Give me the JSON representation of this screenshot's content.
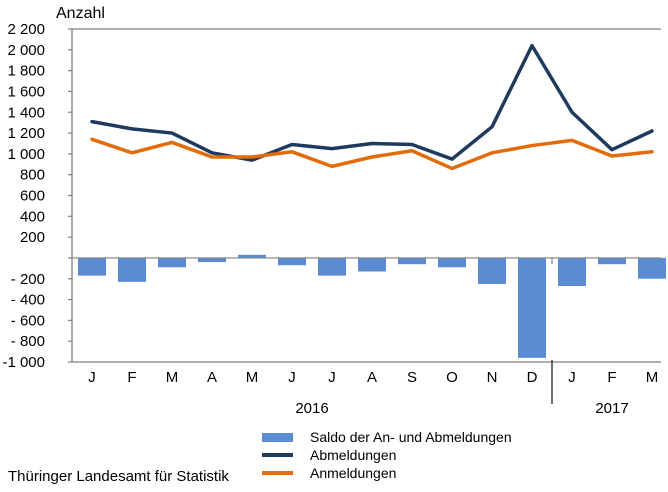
{
  "title": "Anzahl",
  "footer": "Thüringer Landesamt für Statistik",
  "colors": {
    "bar_blue": "#5B8BD0",
    "line_navy": "#1F3A5F",
    "line_orange": "#E36C0A",
    "axis_gray": "#808080",
    "separator_dark": "#333333",
    "text_black": "#000000"
  },
  "legend": {
    "items": [
      {
        "label": "Saldo der An- und Abmeldungen",
        "type": "bar",
        "color": "#5B8BD0"
      },
      {
        "label": "Abmeldungen",
        "type": "line",
        "color": "#1F3A5F"
      },
      {
        "label": "Anmeldungen",
        "type": "line",
        "color": "#E36C0A"
      }
    ]
  },
  "chart_data": {
    "type": "bar",
    "subtype": "combo-bar-line",
    "title": "Anzahl",
    "xlabel": "",
    "ylabel": "Anzahl",
    "ylim": [
      -1000,
      2200
    ],
    "ytick_step": 200,
    "grid": "off",
    "legend_position": "bottom",
    "categories": [
      "J",
      "F",
      "M",
      "A",
      "M",
      "J",
      "J",
      "A",
      "S",
      "O",
      "N",
      "D",
      "J",
      "F",
      "M"
    ],
    "year_groups": [
      {
        "label": "2016",
        "months": 12
      },
      {
        "label": "2017",
        "months": 3
      }
    ],
    "yticks": [
      {
        "v": 2200,
        "l": "2 200"
      },
      {
        "v": 2000,
        "l": "2 000"
      },
      {
        "v": 1800,
        "l": "1 800"
      },
      {
        "v": 1600,
        "l": "1 600"
      },
      {
        "v": 1400,
        "l": "1 400"
      },
      {
        "v": 1200,
        "l": "1 200"
      },
      {
        "v": 1000,
        "l": "1 000"
      },
      {
        "v": 800,
        "l": "800"
      },
      {
        "v": 600,
        "l": "600"
      },
      {
        "v": 400,
        "l": "400"
      },
      {
        "v": 200,
        "l": "200"
      },
      {
        "v": 0,
        "l": ""
      },
      {
        "v": -200,
        "l": "- 200"
      },
      {
        "v": -400,
        "l": "- 400"
      },
      {
        "v": -600,
        "l": "- 600"
      },
      {
        "v": -800,
        "l": "- 800"
      },
      {
        "v": -1000,
        "l": "-1 000"
      }
    ],
    "series": [
      {
        "name": "Saldo der An- und Abmeldungen",
        "type": "bar",
        "color": "#5B8BD0",
        "values": [
          -170,
          -230,
          -90,
          -40,
          30,
          -70,
          -170,
          -130,
          -60,
          -90,
          -250,
          -960,
          -270,
          -60,
          -200
        ]
      },
      {
        "name": "Abmeldungen",
        "type": "line",
        "color": "#1F3A5F",
        "values": [
          1310,
          1240,
          1200,
          1010,
          940,
          1090,
          1050,
          1100,
          1090,
          950,
          1260,
          2040,
          1400,
          1040,
          1220
        ]
      },
      {
        "name": "Anmeldungen",
        "type": "line",
        "color": "#E36C0A",
        "values": [
          1140,
          1010,
          1110,
          970,
          970,
          1020,
          880,
          970,
          1030,
          860,
          1010,
          1080,
          1130,
          980,
          1020
        ]
      }
    ]
  }
}
